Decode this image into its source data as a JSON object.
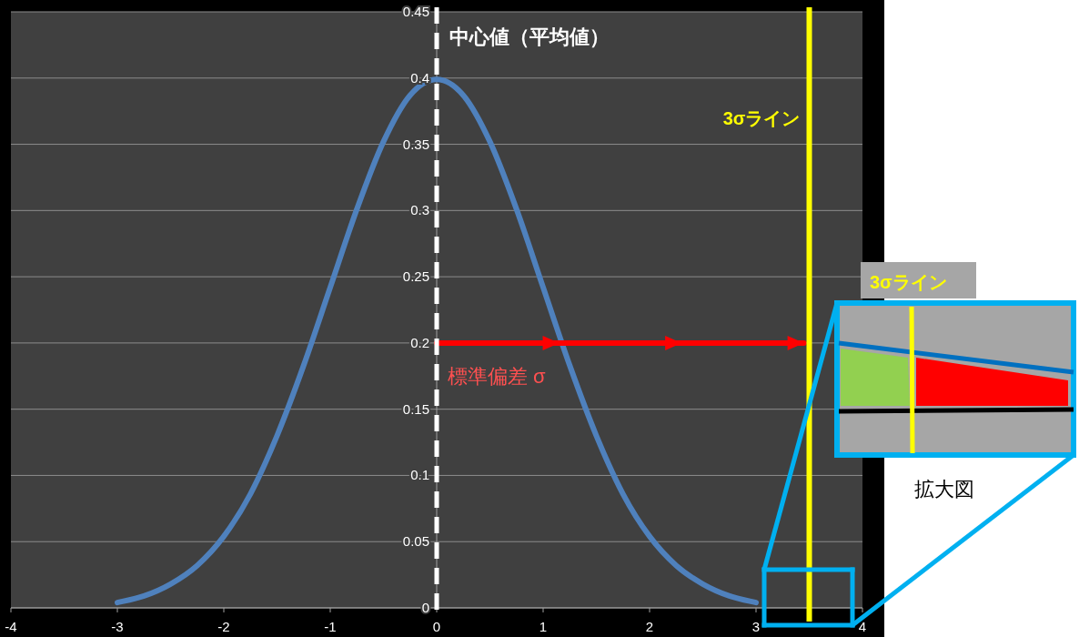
{
  "chart_data": {
    "type": "line",
    "x": [
      -3,
      -2.75,
      -2.5,
      -2.25,
      -2,
      -1.75,
      -1.5,
      -1.25,
      -1,
      -0.75,
      -0.5,
      -0.25,
      0,
      0.25,
      0.5,
      0.75,
      1,
      1.25,
      1.5,
      1.75,
      2,
      2.25,
      2.5,
      2.75,
      3
    ],
    "series": [
      {
        "color": "#4f81bd",
        "values": [
          0.004,
          0.009,
          0.018,
          0.032,
          0.054,
          0.086,
          0.13,
          0.183,
          0.242,
          0.301,
          0.352,
          0.387,
          0.399,
          0.387,
          0.352,
          0.301,
          0.242,
          0.183,
          0.13,
          0.086,
          0.054,
          0.032,
          0.018,
          0.009,
          0.004
        ]
      },
      {
        "type": "line",
        "color": "#ff0000",
        "x": [
          0,
          1.15,
          2.3,
          3.45
        ],
        "values": [
          0.2,
          0.2,
          0.2,
          0.2
        ]
      }
    ],
    "xlim": [
      -4,
      4
    ],
    "xticks": [
      -4,
      -3,
      -2,
      -1,
      0,
      1,
      2,
      3,
      4
    ],
    "ylim": [
      0,
      0.45
    ],
    "yticks": [
      0,
      0.05,
      0.1,
      0.15,
      0.2,
      0.25,
      0.3,
      0.35,
      0.4,
      0.45
    ],
    "grid": "y",
    "ref_lines": [
      {
        "axis": "x",
        "value": 0,
        "label": "中心値（平均値）",
        "color": "#ffffff",
        "line_style": "dashed"
      },
      {
        "axis": "x",
        "value": 3.5,
        "label": "3σライン",
        "color": "#ffff00"
      }
    ],
    "annotations": [
      {
        "text": "標準偏差 σ",
        "x": 0,
        "y": 0.2
      },
      "3σライン",
      "拡大図"
    ]
  }
}
